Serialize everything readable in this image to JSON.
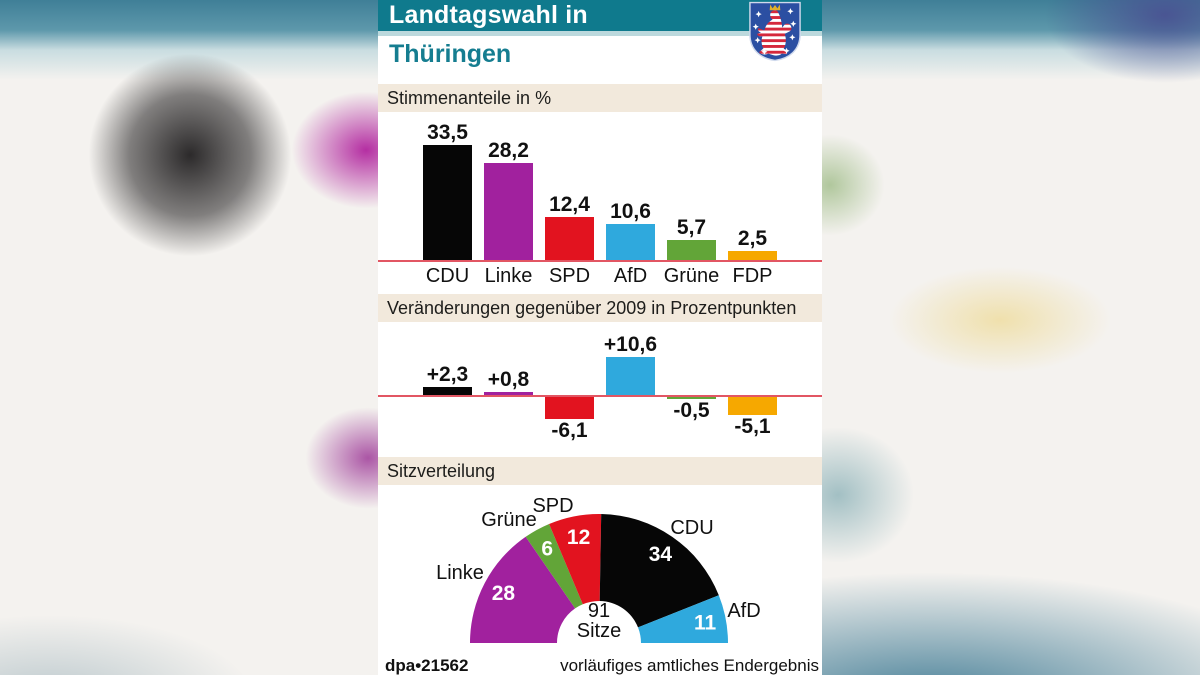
{
  "header": {
    "title_line1": "Landtagswahl in",
    "title_line2": "Thüringen",
    "coat_of_arms": "thueringen-coat-of-arms"
  },
  "sections": {
    "share": {
      "heading": "Stimmenanteile in %"
    },
    "change": {
      "heading": "Veränderungen gegenüber 2009 in Prozentpunkten"
    },
    "seats": {
      "heading": "Sitzverteilung"
    }
  },
  "footer": {
    "source": "dpa•21562",
    "note": "vorläufiges amtliches Endergebnis"
  },
  "party_colors": {
    "CDU": "#060606",
    "Linke": "#a1219e",
    "SPD": "#e2131f",
    "AfD": "#2fa9dd",
    "Grüne": "#62a538",
    "FDP": "#f6a800"
  },
  "accent_colors": {
    "teal_band": "#0f7a8d",
    "baseline_pink": "#e25663",
    "section_beige": "#f2e9dc"
  },
  "chart_data": [
    {
      "type": "bar",
      "title": "Stimmenanteile in %",
      "categories": [
        "CDU",
        "Linke",
        "SPD",
        "AfD",
        "Grüne",
        "FDP"
      ],
      "values": [
        33.5,
        28.2,
        12.4,
        10.6,
        5.7,
        2.5
      ],
      "value_labels": [
        "33,5",
        "28,2",
        "12,4",
        "10,6",
        "5,7",
        "2,5"
      ],
      "xlabel": "",
      "ylabel": "Stimmenanteil in %",
      "ylim": [
        0,
        35
      ],
      "grid": false,
      "legend": false
    },
    {
      "type": "bar",
      "title": "Veränderungen gegenüber 2009 in Prozentpunkten",
      "categories": [
        "CDU",
        "Linke",
        "SPD",
        "AfD",
        "Grüne",
        "FDP"
      ],
      "values": [
        2.3,
        0.8,
        -6.1,
        10.6,
        -0.5,
        -5.1
      ],
      "value_labels": [
        "+2,3",
        "+0,8",
        "-6,1",
        "+10,6",
        "-0,5",
        "-5,1"
      ],
      "xlabel": "",
      "ylabel": "Veränderung in Prozentpunkten",
      "ylim": [
        -7,
        11
      ],
      "grid": false,
      "legend": false
    },
    {
      "type": "pie",
      "subtype": "half-donut",
      "title": "Sitzverteilung",
      "categories": [
        "Linke",
        "Grüne",
        "SPD",
        "CDU",
        "AfD"
      ],
      "values": [
        28,
        6,
        12,
        34,
        11
      ],
      "total": 91,
      "center_label": {
        "line1": "91",
        "line2": "Sitze"
      },
      "legend": false
    }
  ]
}
